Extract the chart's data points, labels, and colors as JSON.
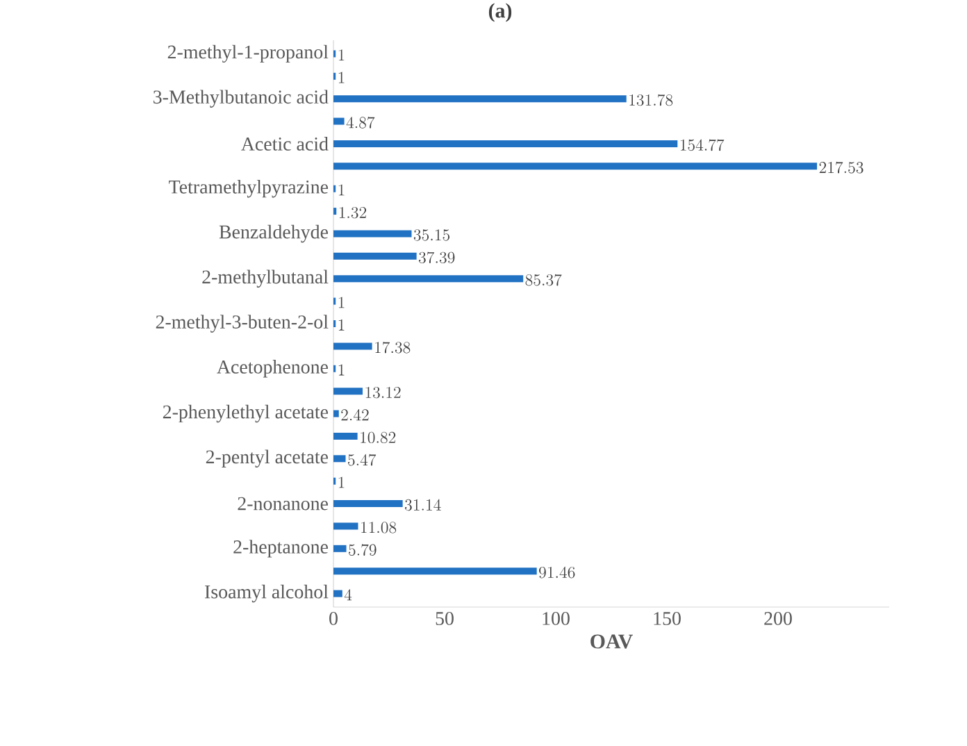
{
  "chart_data": {
    "type": "bar",
    "orientation": "horizontal",
    "title": "(a)",
    "xlabel": "OAV",
    "categories": [
      "2-methyl-1-propanol",
      null,
      "3-Methylbutanoic acid",
      null,
      "Acetic acid",
      null,
      "Tetramethylpyrazine",
      null,
      "Benzaldehyde",
      null,
      "2-methylbutanal",
      null,
      "2-methyl-3-buten-2-ol",
      null,
      "Acetophenone",
      null,
      "2-phenylethyl acetate",
      null,
      "2-pentyl acetate",
      null,
      "2-nonanone",
      null,
      "2-heptanone",
      null,
      "Isoamyl alcohol"
    ],
    "values": [
      1,
      1,
      131.78,
      4.87,
      154.77,
      217.53,
      1,
      1.32,
      35.15,
      37.39,
      85.37,
      1,
      1,
      17.38,
      1,
      13.12,
      2.42,
      10.82,
      5.47,
      1,
      31.14,
      11.08,
      5.79,
      91.46,
      4
    ],
    "color": "#2272c3",
    "xlim": [
      0,
      250
    ],
    "xticks": [
      0,
      50,
      100,
      150,
      200
    ],
    "data_labels": true,
    "grid": false
  }
}
